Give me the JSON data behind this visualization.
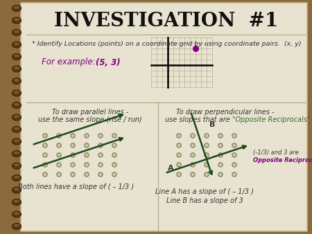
{
  "title": "INVESTIGATION  #1",
  "bg_outer": "#8B6B3D",
  "bg_paper": "#E8E2D0",
  "title_color": "#111111",
  "text_color": "#333333",
  "purple_color": "#800080",
  "green_color": "#2E6B2E",
  "red_color": "#CC0000",
  "identify_text": "* Identify Locations (points) on a coordinate grid by using coordinate pairs.  (x, y)",
  "example_text1": "For example:  ",
  "example_text2": "(5, 3)",
  "parallel_title": "To draw parallel lines -",
  "parallel_sub": "use the same slope (rise / run)",
  "perp_title": "To draw perpendicular lines -",
  "perp_sub": "use slopes that are ",
  "perp_sub2": "\"Opposite Reciprocals\"",
  "both_slope": "Both lines have a slope of ( – 1/3 )",
  "lineA_slope": "Line A has a slope of ( – 1/3 )",
  "lineB_slope": "Line B has a slope of 3",
  "note1": "(-1/3) and 3 are",
  "note2": "Opposite Reciprocals",
  "dot_color": "#8a8a6a",
  "line_color": "#1a4a1a",
  "dot_outline": "#6a6a4a"
}
